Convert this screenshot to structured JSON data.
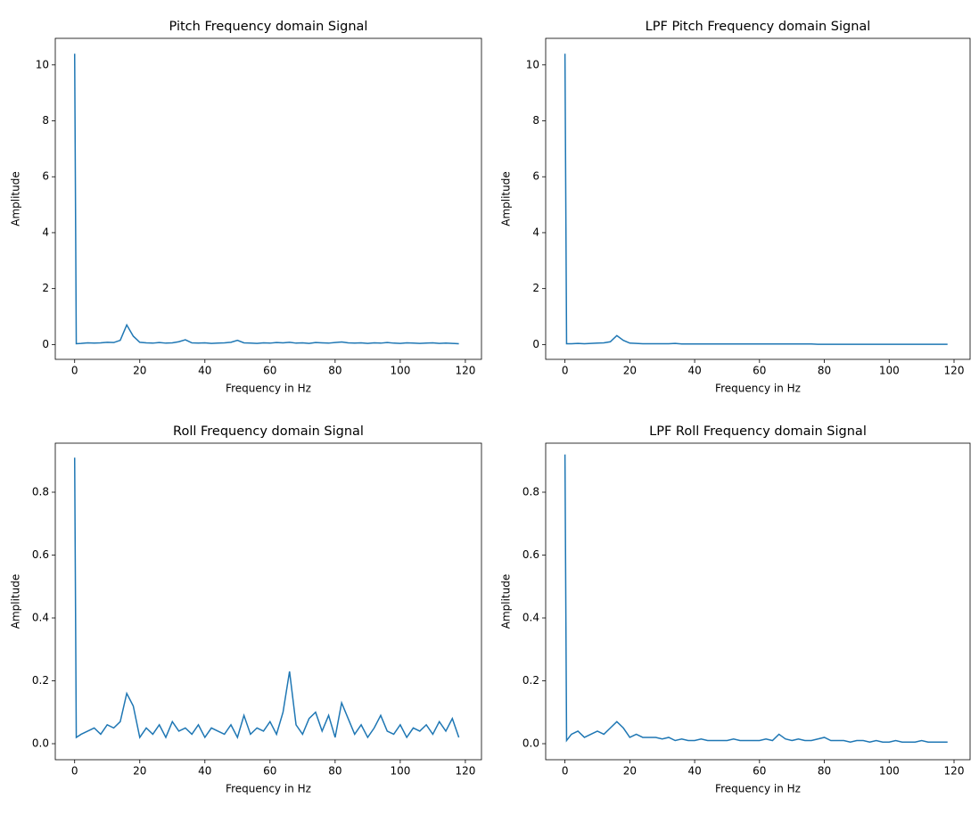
{
  "chart_data": [
    {
      "type": "line",
      "title": "Pitch Frequency domain Signal",
      "xlabel": "Frequency in Hz",
      "ylabel": "Amplitude",
      "color": "#1f77b4",
      "x": [
        0,
        0.5,
        2,
        4,
        6,
        8,
        10,
        12,
        14,
        16,
        18,
        20,
        22,
        24,
        26,
        28,
        30,
        32,
        34,
        36,
        38,
        40,
        42,
        44,
        46,
        48,
        50,
        52,
        54,
        56,
        58,
        60,
        62,
        64,
        66,
        68,
        70,
        72,
        74,
        76,
        78,
        80,
        82,
        84,
        86,
        88,
        90,
        92,
        94,
        96,
        98,
        100,
        102,
        104,
        106,
        108,
        110,
        112,
        114,
        116,
        118
      ],
      "values": [
        10.4,
        0.03,
        0.04,
        0.06,
        0.05,
        0.06,
        0.08,
        0.07,
        0.15,
        0.7,
        0.3,
        0.08,
        0.06,
        0.05,
        0.07,
        0.05,
        0.06,
        0.1,
        0.17,
        0.06,
        0.05,
        0.06,
        0.04,
        0.05,
        0.06,
        0.08,
        0.15,
        0.06,
        0.05,
        0.04,
        0.06,
        0.05,
        0.07,
        0.06,
        0.08,
        0.05,
        0.06,
        0.04,
        0.07,
        0.06,
        0.05,
        0.07,
        0.09,
        0.06,
        0.05,
        0.06,
        0.04,
        0.06,
        0.05,
        0.07,
        0.05,
        0.04,
        0.06,
        0.05,
        0.04,
        0.05,
        0.06,
        0.04,
        0.05,
        0.04,
        0.03
      ],
      "xlim": [
        -5.95,
        124.95
      ],
      "ylim": [
        -0.53,
        10.95
      ],
      "xticks": [
        0,
        20,
        40,
        60,
        80,
        100,
        120
      ],
      "yticks": [
        0,
        2,
        4,
        6,
        8,
        10
      ]
    },
    {
      "type": "line",
      "title": "LPF Pitch Frequency domain Signal",
      "xlabel": "Frequency in Hz",
      "ylabel": "Amplitude",
      "color": "#1f77b4",
      "x": [
        0,
        0.5,
        2,
        4,
        6,
        8,
        10,
        12,
        14,
        16,
        18,
        20,
        22,
        24,
        26,
        28,
        30,
        32,
        34,
        36,
        38,
        40,
        42,
        44,
        46,
        48,
        50,
        52,
        54,
        56,
        58,
        60,
        62,
        64,
        66,
        68,
        70,
        72,
        74,
        76,
        78,
        80,
        82,
        84,
        86,
        88,
        90,
        92,
        94,
        96,
        98,
        100,
        102,
        104,
        106,
        108,
        110,
        112,
        114,
        116,
        118
      ],
      "values": [
        10.4,
        0.03,
        0.03,
        0.04,
        0.03,
        0.04,
        0.05,
        0.06,
        0.1,
        0.32,
        0.15,
        0.05,
        0.04,
        0.03,
        0.03,
        0.03,
        0.03,
        0.03,
        0.04,
        0.02,
        0.02,
        0.02,
        0.02,
        0.02,
        0.02,
        0.02,
        0.02,
        0.02,
        0.02,
        0.02,
        0.02,
        0.02,
        0.02,
        0.02,
        0.02,
        0.02,
        0.02,
        0.02,
        0.02,
        0.02,
        0.01,
        0.01,
        0.01,
        0.01,
        0.01,
        0.01,
        0.01,
        0.01,
        0.01,
        0.01,
        0.01,
        0.01,
        0.01,
        0.01,
        0.01,
        0.01,
        0.01,
        0.01,
        0.01,
        0.01,
        0.01
      ],
      "xlim": [
        -5.95,
        124.95
      ],
      "ylim": [
        -0.53,
        10.95
      ],
      "xticks": [
        0,
        20,
        40,
        60,
        80,
        100,
        120
      ],
      "yticks": [
        0,
        2,
        4,
        6,
        8,
        10
      ]
    },
    {
      "type": "line",
      "title": "Roll Frequency domain Signal",
      "xlabel": "Frequency in Hz",
      "ylabel": "Amplitude",
      "color": "#1f77b4",
      "x": [
        0,
        0.5,
        2,
        4,
        6,
        8,
        10,
        12,
        14,
        16,
        18,
        20,
        22,
        24,
        26,
        28,
        30,
        32,
        34,
        36,
        38,
        40,
        42,
        44,
        46,
        48,
        50,
        52,
        54,
        56,
        58,
        60,
        62,
        64,
        66,
        68,
        70,
        72,
        74,
        76,
        78,
        80,
        82,
        84,
        86,
        88,
        90,
        92,
        94,
        96,
        98,
        100,
        102,
        104,
        106,
        108,
        110,
        112,
        114,
        116,
        118
      ],
      "values": [
        0.91,
        0.02,
        0.03,
        0.04,
        0.05,
        0.03,
        0.06,
        0.05,
        0.07,
        0.16,
        0.12,
        0.02,
        0.05,
        0.03,
        0.06,
        0.02,
        0.07,
        0.04,
        0.05,
        0.03,
        0.06,
        0.02,
        0.05,
        0.04,
        0.03,
        0.06,
        0.02,
        0.09,
        0.03,
        0.05,
        0.04,
        0.07,
        0.03,
        0.1,
        0.23,
        0.06,
        0.03,
        0.08,
        0.1,
        0.04,
        0.09,
        0.02,
        0.13,
        0.08,
        0.03,
        0.06,
        0.02,
        0.05,
        0.09,
        0.04,
        0.03,
        0.06,
        0.02,
        0.05,
        0.04,
        0.06,
        0.03,
        0.07,
        0.04,
        0.08,
        0.02
      ],
      "xlim": [
        -5.95,
        124.95
      ],
      "ylim": [
        -0.051,
        0.956
      ],
      "xticks": [
        0,
        20,
        40,
        60,
        80,
        100,
        120
      ],
      "yticks": [
        {
          "value": 0,
          "label": "0.0"
        },
        0.2,
        0.4,
        0.6,
        0.8
      ]
    },
    {
      "type": "line",
      "title": "LPF Roll Frequency domain Signal",
      "xlabel": "Frequency in Hz",
      "ylabel": "Amplitude",
      "color": "#1f77b4",
      "x": [
        0,
        0.5,
        2,
        4,
        6,
        8,
        10,
        12,
        14,
        16,
        18,
        20,
        22,
        24,
        26,
        28,
        30,
        32,
        34,
        36,
        38,
        40,
        42,
        44,
        46,
        48,
        50,
        52,
        54,
        56,
        58,
        60,
        62,
        64,
        66,
        68,
        70,
        72,
        74,
        76,
        78,
        80,
        82,
        84,
        86,
        88,
        90,
        92,
        94,
        96,
        98,
        100,
        102,
        104,
        106,
        108,
        110,
        112,
        114,
        116,
        118
      ],
      "values": [
        0.92,
        0.01,
        0.03,
        0.04,
        0.02,
        0.03,
        0.04,
        0.03,
        0.05,
        0.07,
        0.05,
        0.02,
        0.03,
        0.02,
        0.02,
        0.02,
        0.015,
        0.02,
        0.01,
        0.015,
        0.01,
        0.01,
        0.015,
        0.01,
        0.01,
        0.01,
        0.01,
        0.015,
        0.01,
        0.01,
        0.01,
        0.01,
        0.015,
        0.01,
        0.03,
        0.015,
        0.01,
        0.015,
        0.01,
        0.01,
        0.015,
        0.02,
        0.01,
        0.01,
        0.01,
        0.005,
        0.01,
        0.01,
        0.005,
        0.01,
        0.005,
        0.005,
        0.01,
        0.005,
        0.005,
        0.005,
        0.01,
        0.005,
        0.005,
        0.005,
        0.005
      ],
      "xlim": [
        -5.95,
        124.95
      ],
      "ylim": [
        -0.051,
        0.956
      ],
      "xticks": [
        0,
        20,
        40,
        60,
        80,
        100,
        120
      ],
      "yticks": [
        {
          "value": 0,
          "label": "0.0"
        },
        0.2,
        0.4,
        0.6,
        0.8
      ]
    }
  ]
}
